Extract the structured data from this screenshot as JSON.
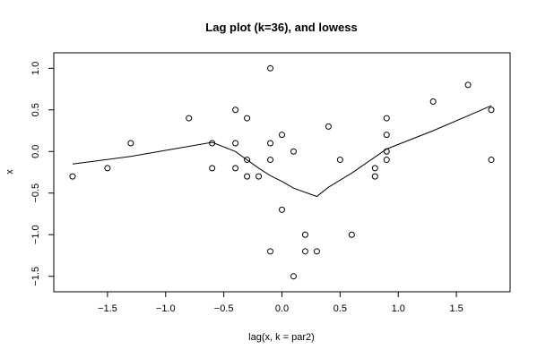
{
  "chart_data": {
    "type": "scatter",
    "title": "Lag plot (k=36), and lowess",
    "xlabel": "lag(x, k = par2)",
    "ylabel": "x",
    "xlim": [
      -1.9,
      1.9
    ],
    "ylim": [
      -1.6,
      1.1
    ],
    "x_ticks": [
      -1.5,
      -1.0,
      -0.5,
      0.0,
      0.5,
      1.0,
      1.5
    ],
    "x_tick_labels": [
      "−1.5",
      "−1.0",
      "−0.5",
      "0.0",
      "0.5",
      "1.0",
      "1.5"
    ],
    "y_ticks": [
      -1.5,
      -1.0,
      -0.5,
      0.0,
      0.5,
      1.0
    ],
    "y_tick_labels": [
      "−1.5",
      "−1.0",
      "−0.5",
      "0.0",
      "0.5",
      "1.0"
    ],
    "grid": false,
    "points": [
      {
        "x": -1.8,
        "y": -0.3
      },
      {
        "x": -1.5,
        "y": -0.2
      },
      {
        "x": -1.3,
        "y": 0.1
      },
      {
        "x": -0.8,
        "y": 0.4
      },
      {
        "x": -0.6,
        "y": 0.1
      },
      {
        "x": -0.6,
        "y": -0.2
      },
      {
        "x": -0.4,
        "y": 0.5
      },
      {
        "x": -0.4,
        "y": 0.1
      },
      {
        "x": -0.4,
        "y": -0.2
      },
      {
        "x": -0.3,
        "y": 0.4
      },
      {
        "x": -0.3,
        "y": -0.1
      },
      {
        "x": -0.3,
        "y": -0.3
      },
      {
        "x": -0.2,
        "y": -0.3
      },
      {
        "x": -0.1,
        "y": 1.0
      },
      {
        "x": -0.1,
        "y": 0.1
      },
      {
        "x": -0.1,
        "y": -0.1
      },
      {
        "x": -0.1,
        "y": -1.2
      },
      {
        "x": 0.0,
        "y": 0.2
      },
      {
        "x": 0.0,
        "y": -0.7
      },
      {
        "x": 0.1,
        "y": 0.0
      },
      {
        "x": 0.1,
        "y": -1.5
      },
      {
        "x": 0.2,
        "y": -1.0
      },
      {
        "x": 0.2,
        "y": -1.2
      },
      {
        "x": 0.3,
        "y": -1.2
      },
      {
        "x": 0.4,
        "y": 0.3
      },
      {
        "x": 0.5,
        "y": -0.1
      },
      {
        "x": 0.6,
        "y": -1.0
      },
      {
        "x": 0.8,
        "y": -0.2
      },
      {
        "x": 0.8,
        "y": -0.3
      },
      {
        "x": 0.9,
        "y": 0.4
      },
      {
        "x": 0.9,
        "y": 0.2
      },
      {
        "x": 0.9,
        "y": 0.0
      },
      {
        "x": 0.9,
        "y": -0.1
      },
      {
        "x": 1.3,
        "y": 0.6
      },
      {
        "x": 1.6,
        "y": 0.8
      },
      {
        "x": 1.8,
        "y": 0.5
      },
      {
        "x": 1.8,
        "y": -0.1
      }
    ],
    "lowess": [
      {
        "x": -1.8,
        "y": -0.15
      },
      {
        "x": -1.3,
        "y": -0.06
      },
      {
        "x": -0.6,
        "y": 0.11
      },
      {
        "x": -0.4,
        "y": 0.0
      },
      {
        "x": -0.2,
        "y": -0.2
      },
      {
        "x": -0.1,
        "y": -0.29
      },
      {
        "x": 0.0,
        "y": -0.36
      },
      {
        "x": 0.1,
        "y": -0.44
      },
      {
        "x": 0.3,
        "y": -0.54
      },
      {
        "x": 0.4,
        "y": -0.43
      },
      {
        "x": 0.6,
        "y": -0.26
      },
      {
        "x": 0.9,
        "y": 0.03
      },
      {
        "x": 1.3,
        "y": 0.25
      },
      {
        "x": 1.6,
        "y": 0.43
      },
      {
        "x": 1.8,
        "y": 0.55
      }
    ]
  }
}
